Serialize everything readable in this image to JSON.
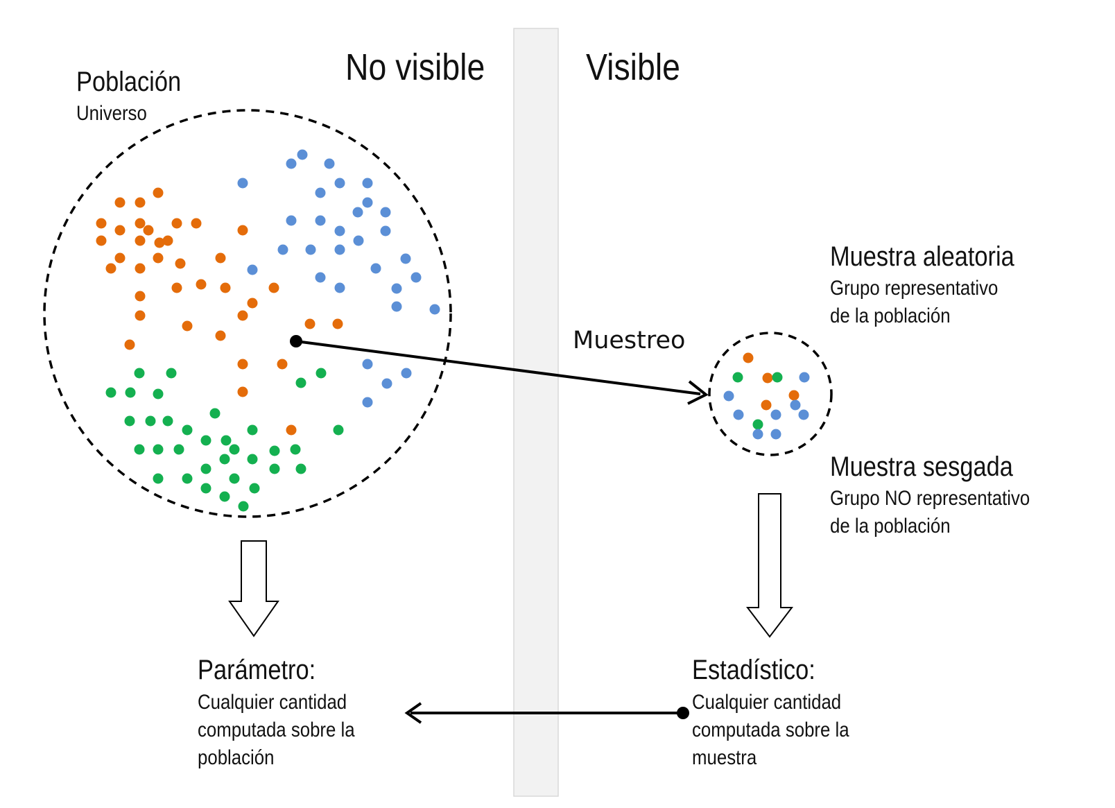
{
  "headers": {
    "not_visible": "No visible",
    "visible": "Visible"
  },
  "population": {
    "title": "Población",
    "subtitle": "Universo"
  },
  "sampling_label": "Muestreo",
  "random_sample": {
    "title": "Muestra aleatoria",
    "line1": "Grupo representativo",
    "line2": "de la población"
  },
  "biased_sample": {
    "title": "Muestra sesgada",
    "line1": "Grupo NO representativo",
    "line2": "de la población"
  },
  "parameter": {
    "title": "Parámetro:",
    "line1": "Cualquier cantidad",
    "line2": "computada sobre la",
    "line3": "población"
  },
  "statistic": {
    "title": "Estadístico:",
    "line1": "Cualquier cantidad",
    "line2": "computada sobre la",
    "line3": "muestra"
  },
  "colors": {
    "orange": "#e46c0a",
    "blue": "#5b8fd6",
    "green": "#14b050",
    "divider": "#f2f2f2",
    "divider_border": "#d9d9d9",
    "line": "#000000"
  }
}
